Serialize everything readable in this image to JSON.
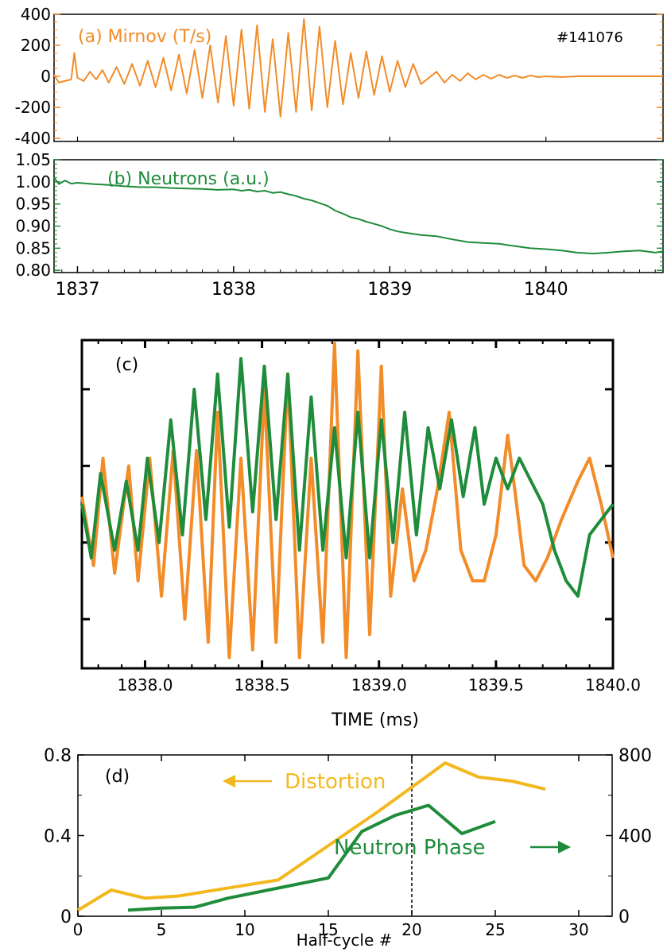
{
  "colors": {
    "orange": "#f28c28",
    "green": "#1e8c3a",
    "yellow": "#f2b81e",
    "frame": "#000000"
  },
  "chart_data": [
    {
      "id": "a",
      "type": "line",
      "title": "(a) Mirnov (T/s)",
      "annotation": "#141076",
      "color": "#f28c28",
      "xlim": [
        1836.85,
        1840.75
      ],
      "ylim": [
        -420,
        400
      ],
      "yticks": [
        "400",
        "200",
        "0",
        "-200",
        "-400"
      ],
      "yticks_values": [
        400,
        200,
        0,
        -200,
        -400
      ],
      "series": [
        {
          "x": [
            1836.85,
            1836.88,
            1836.92,
            1836.96,
            1836.98,
            1837.0,
            1837.04,
            1837.08,
            1837.12,
            1837.16,
            1837.2,
            1837.25,
            1837.3,
            1837.35,
            1837.4,
            1837.45,
            1837.5,
            1837.55,
            1837.6,
            1837.65,
            1837.7,
            1837.75,
            1837.8,
            1837.85,
            1837.9,
            1837.95,
            1838.0,
            1838.05,
            1838.1,
            1838.15,
            1838.2,
            1838.25,
            1838.3,
            1838.35,
            1838.4,
            1838.45,
            1838.5,
            1838.55,
            1838.6,
            1838.65,
            1838.7,
            1838.75,
            1838.8,
            1838.85,
            1838.9,
            1838.95,
            1839.0,
            1839.05,
            1839.1,
            1839.15,
            1839.2,
            1839.3,
            1839.35,
            1839.4,
            1839.45,
            1839.5,
            1839.55,
            1839.6,
            1839.65,
            1839.7,
            1839.75,
            1839.8,
            1839.85,
            1839.9,
            1839.95,
            1840.0,
            1840.1,
            1840.2,
            1840.3,
            1840.35,
            1840.4,
            1840.45,
            1840.5,
            1840.6,
            1840.75
          ],
          "y": [
            10,
            -40,
            -30,
            -20,
            150,
            -10,
            -30,
            30,
            -20,
            40,
            -40,
            60,
            -50,
            80,
            -60,
            100,
            -70,
            120,
            -90,
            140,
            -110,
            170,
            -140,
            200,
            -170,
            260,
            -190,
            300,
            -210,
            330,
            -230,
            240,
            -260,
            280,
            -230,
            370,
            -220,
            320,
            -200,
            230,
            -180,
            150,
            -140,
            160,
            -120,
            130,
            -100,
            100,
            -70,
            80,
            -50,
            30,
            -40,
            10,
            -30,
            20,
            -20,
            10,
            -15,
            10,
            -10,
            5,
            -10,
            5,
            -5,
            0,
            -5,
            0,
            0,
            0,
            0,
            0,
            0,
            0,
            0
          ]
        }
      ]
    },
    {
      "id": "b",
      "type": "line",
      "title": "(b) Neutrons (a.u.)",
      "color": "#1e8c3a",
      "xlim": [
        1836.85,
        1840.75
      ],
      "ylim": [
        0.795,
        1.05
      ],
      "yticks": [
        "1.05",
        "1.00",
        "0.95",
        "0.90",
        "0.85",
        "0.80"
      ],
      "yticks_values": [
        1.05,
        1.0,
        0.95,
        0.9,
        0.85,
        0.8
      ],
      "xticks": [
        "1837",
        "1838",
        "1839",
        "1840"
      ],
      "xticks_values": [
        1837,
        1838,
        1839,
        1840
      ],
      "series": [
        {
          "x": [
            1836.85,
            1836.88,
            1836.92,
            1836.96,
            1837.0,
            1837.1,
            1837.2,
            1837.3,
            1837.4,
            1837.5,
            1837.6,
            1837.7,
            1837.8,
            1837.9,
            1838.0,
            1838.05,
            1838.1,
            1838.15,
            1838.2,
            1838.25,
            1838.3,
            1838.35,
            1838.4,
            1838.45,
            1838.5,
            1838.55,
            1838.6,
            1838.65,
            1838.7,
            1838.75,
            1838.8,
            1838.85,
            1838.9,
            1838.95,
            1839.0,
            1839.05,
            1839.1,
            1839.2,
            1839.3,
            1839.4,
            1839.5,
            1839.6,
            1839.7,
            1839.8,
            1839.9,
            1840.0,
            1840.1,
            1840.2,
            1840.3,
            1840.4,
            1840.5,
            1840.6,
            1840.7,
            1840.75
          ],
          "y": [
            1.01,
            0.995,
            1.003,
            0.996,
            0.998,
            0.995,
            0.993,
            0.99,
            0.988,
            0.988,
            0.986,
            0.985,
            0.984,
            0.982,
            0.983,
            0.98,
            0.982,
            0.978,
            0.98,
            0.975,
            0.977,
            0.972,
            0.968,
            0.962,
            0.958,
            0.952,
            0.946,
            0.935,
            0.928,
            0.92,
            0.916,
            0.91,
            0.905,
            0.9,
            0.893,
            0.888,
            0.885,
            0.88,
            0.877,
            0.87,
            0.864,
            0.862,
            0.86,
            0.855,
            0.85,
            0.848,
            0.845,
            0.84,
            0.838,
            0.84,
            0.843,
            0.845,
            0.84,
            0.843
          ]
        }
      ]
    },
    {
      "id": "c",
      "type": "line",
      "title": "(c)",
      "xlabel": "TIME (ms)",
      "xlim": [
        1837.73,
        1840.0
      ],
      "ylim": [
        -1.05,
        1.05
      ],
      "xticks": [
        "1838.0",
        "1838.5",
        "1839.0",
        "1839.5",
        "1840.0"
      ],
      "xticks_values": [
        1838.0,
        1838.5,
        1839.0,
        1839.5,
        1840.0
      ],
      "series": [
        {
          "color": "#f28c28",
          "x": [
            1837.73,
            1837.78,
            1837.82,
            1837.87,
            1837.93,
            1837.97,
            1838.02,
            1838.07,
            1838.12,
            1838.17,
            1838.22,
            1838.27,
            1838.31,
            1838.36,
            1838.41,
            1838.46,
            1838.51,
            1838.56,
            1838.61,
            1838.66,
            1838.71,
            1838.76,
            1838.81,
            1838.86,
            1838.91,
            1838.96,
            1839.01,
            1839.05,
            1839.1,
            1839.15,
            1839.2,
            1839.25,
            1839.3,
            1839.35,
            1839.4,
            1839.45,
            1839.5,
            1839.55,
            1839.58,
            1839.62,
            1839.67,
            1839.72,
            1839.78,
            1839.85,
            1839.9,
            1839.95,
            1840.0
          ],
          "y": [
            0.05,
            -0.4,
            0.3,
            -0.45,
            0.25,
            -0.5,
            0.3,
            -0.6,
            0.35,
            -0.75,
            0.35,
            -0.9,
            0.6,
            -1.0,
            0.3,
            -0.95,
            0.75,
            -0.9,
            0.85,
            -1.0,
            0.3,
            -0.9,
            1.05,
            -1.0,
            1.0,
            -0.85,
            0.9,
            -0.6,
            0.1,
            -0.5,
            -0.3,
            0.1,
            0.6,
            -0.3,
            -0.5,
            -0.5,
            -0.2,
            0.45,
            0.1,
            -0.4,
            -0.5,
            -0.35,
            -0.1,
            0.15,
            0.3,
            0.0,
            -0.35
          ]
        },
        {
          "color": "#1e8c3a",
          "x": [
            1837.73,
            1837.77,
            1837.81,
            1837.87,
            1837.92,
            1837.97,
            1838.01,
            1838.06,
            1838.11,
            1838.16,
            1838.21,
            1838.26,
            1838.31,
            1838.36,
            1838.41,
            1838.46,
            1838.51,
            1838.56,
            1838.61,
            1838.66,
            1838.71,
            1838.76,
            1838.81,
            1838.86,
            1838.91,
            1838.96,
            1839.01,
            1839.06,
            1839.11,
            1839.16,
            1839.21,
            1839.26,
            1839.31,
            1839.36,
            1839.41,
            1839.45,
            1839.5,
            1839.55,
            1839.6,
            1839.65,
            1839.7,
            1839.75,
            1839.8,
            1839.85,
            1839.9,
            1839.95,
            1840.0
          ],
          "y": [
            0.0,
            -0.35,
            0.2,
            -0.3,
            0.15,
            -0.3,
            0.3,
            -0.25,
            0.55,
            -0.2,
            0.75,
            -0.1,
            0.85,
            -0.15,
            0.95,
            -0.05,
            0.9,
            -0.1,
            0.85,
            -0.3,
            0.7,
            -0.3,
            0.5,
            -0.35,
            0.6,
            -0.35,
            0.55,
            -0.25,
            0.6,
            -0.2,
            0.5,
            0.1,
            0.55,
            0.05,
            0.5,
            0.0,
            0.3,
            0.1,
            0.3,
            0.15,
            0.0,
            -0.3,
            -0.5,
            -0.6,
            -0.2,
            -0.1,
            0.0
          ]
        }
      ]
    },
    {
      "id": "d",
      "type": "line",
      "title": "(d)",
      "xlabel": "Half-cycle #",
      "xlim": [
        0,
        32
      ],
      "ylim": [
        0,
        0.8
      ],
      "ylim_right": [
        0,
        800
      ],
      "xticks": [
        "0",
        "5",
        "10",
        "15",
        "20",
        "25",
        "30"
      ],
      "xticks_values": [
        0,
        5,
        10,
        15,
        20,
        25,
        30
      ],
      "yticks": [
        "0",
        "0.4",
        "0.8"
      ],
      "yticks_values": [
        0,
        0.4,
        0.8
      ],
      "yticks_right": [
        "0",
        "400",
        "800"
      ],
      "yticks_right_values": [
        0,
        400,
        800
      ],
      "vline_x": 20,
      "series": [
        {
          "name": "Distortion",
          "axis": "left",
          "color": "#f2b81e",
          "x": [
            0,
            2,
            4,
            6,
            12,
            18,
            20,
            22,
            24,
            26,
            28
          ],
          "y": [
            0.03,
            0.13,
            0.09,
            0.1,
            0.18,
            0.52,
            0.64,
            0.76,
            0.69,
            0.67,
            0.63
          ]
        },
        {
          "name": "Neutron Phase",
          "axis": "right",
          "color": "#1e8c3a",
          "x": [
            3,
            5,
            7,
            9,
            12,
            15,
            17,
            19,
            21,
            23,
            25
          ],
          "y": [
            30,
            40,
            45,
            90,
            140,
            190,
            420,
            500,
            550,
            410,
            470
          ]
        }
      ],
      "annotations": [
        {
          "text": "Distortion",
          "arrow": "left"
        },
        {
          "text": "Neutron Phase",
          "arrow": "right"
        }
      ]
    }
  ]
}
